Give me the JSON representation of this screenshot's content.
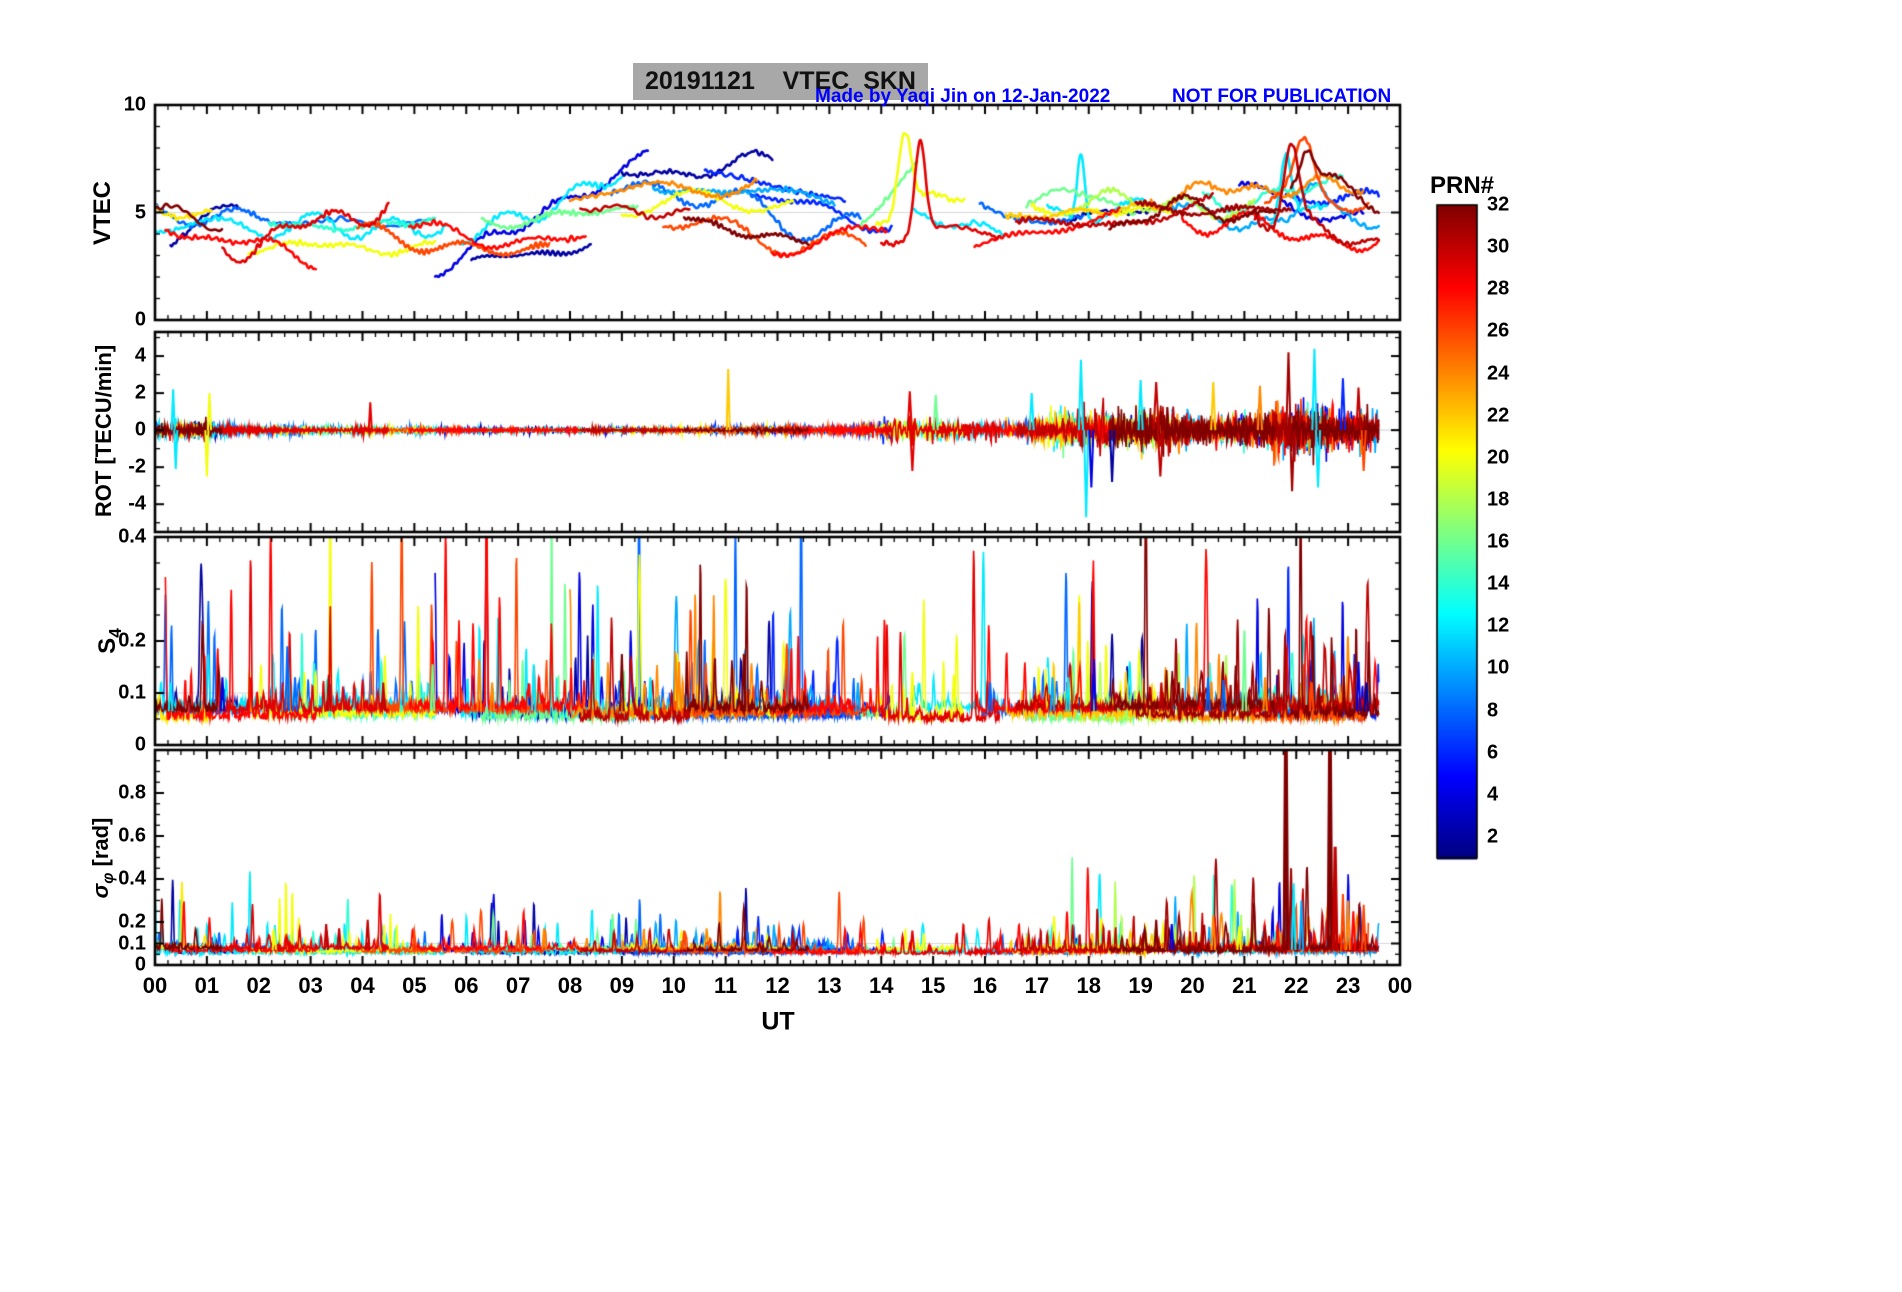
{
  "header": {
    "title": "20191121    VTEC  SKN",
    "credit": "Made by Yaqi Jin on 12-Jan-2022",
    "warning": "NOT FOR PUBLICATION",
    "title_bg": "#a8a8a8",
    "annotation_color": "#0000ff"
  },
  "colorbar": {
    "title": "PRN#",
    "tick_values": [
      2,
      4,
      6,
      8,
      10,
      12,
      14,
      16,
      18,
      20,
      22,
      24,
      26,
      28,
      30,
      32
    ],
    "range": [
      1,
      32
    ],
    "colormap": "jet"
  },
  "chart_data": {
    "type": "line",
    "xlabel": "UT",
    "x_tick_labels": [
      "00",
      "01",
      "02",
      "03",
      "04",
      "05",
      "06",
      "07",
      "08",
      "09",
      "10",
      "11",
      "12",
      "13",
      "14",
      "15",
      "16",
      "17",
      "18",
      "19",
      "20",
      "21",
      "22",
      "23",
      "00"
    ],
    "x_range_hours": [
      0,
      24
    ],
    "panels": [
      {
        "name": "VTEC",
        "ylabel": "VTEC",
        "ylim": [
          0,
          10
        ],
        "ytick_vals": [
          0,
          5,
          10
        ],
        "ytick_labels": [
          "0",
          "5",
          "10"
        ],
        "minor_step": 1,
        "grid": [
          5
        ]
      },
      {
        "name": "ROT",
        "ylabel": "ROT [TECU/min]",
        "ylim": [
          -5.5,
          5.3
        ],
        "ytick_vals": [
          -4,
          -2,
          0,
          2,
          4
        ],
        "ytick_labels": [
          "-4",
          "-2",
          "0",
          "2",
          "4"
        ],
        "minor_step": 1,
        "grid": [
          0
        ],
        "noise_scale": 0.33,
        "envelope": [
          [
            0,
            1.1
          ],
          [
            0.8,
            0.9
          ],
          [
            2,
            0.45
          ],
          [
            5,
            0.4
          ],
          [
            8,
            0.3
          ],
          [
            10,
            0.35
          ],
          [
            13,
            0.45
          ],
          [
            13.8,
            0.8
          ],
          [
            14.3,
            1.7
          ],
          [
            15.2,
            1.5
          ],
          [
            16,
            0.9
          ],
          [
            16.8,
            1.2
          ],
          [
            17.5,
            2.1
          ],
          [
            18.2,
            2.5
          ],
          [
            19,
            2.1
          ],
          [
            19.5,
            2.5
          ],
          [
            20.2,
            1.7
          ],
          [
            21,
            2.1
          ],
          [
            21.8,
            2.9
          ],
          [
            22.4,
            3.1
          ],
          [
            23,
            2.5
          ],
          [
            23.6,
            2.1
          ]
        ],
        "spikes": [
          [
            0.35,
            12,
            2.2,
            0.03
          ],
          [
            0.4,
            12,
            -2.1,
            0.03
          ],
          [
            1.0,
            20,
            -2.5,
            0.03
          ],
          [
            1.05,
            20,
            2.0,
            0.03
          ],
          [
            4.15,
            29,
            1.5,
            0.03
          ],
          [
            11.05,
            22,
            3.3,
            0.03
          ],
          [
            14.55,
            29,
            2.1,
            0.04
          ],
          [
            14.6,
            29,
            -2.2,
            0.04
          ],
          [
            15.05,
            16,
            1.9,
            0.04
          ],
          [
            16.9,
            12,
            2.0,
            0.04
          ],
          [
            17.85,
            12,
            3.8,
            0.04
          ],
          [
            17.95,
            12,
            -4.7,
            0.04
          ],
          [
            18.05,
            4,
            -3.1,
            0.04
          ],
          [
            18.45,
            2,
            -2.8,
            0.04
          ],
          [
            19.0,
            12,
            2.7,
            0.04
          ],
          [
            19.3,
            30,
            2.6,
            0.05
          ],
          [
            19.38,
            30,
            -2.5,
            0.05
          ],
          [
            20.4,
            22,
            2.6,
            0.04
          ],
          [
            21.3,
            24,
            2.4,
            0.04
          ],
          [
            21.85,
            31,
            4.2,
            0.04
          ],
          [
            21.92,
            31,
            -3.3,
            0.04
          ],
          [
            22.35,
            12,
            4.4,
            0.04
          ],
          [
            22.42,
            12,
            -3.1,
            0.04
          ],
          [
            22.9,
            6,
            2.8,
            0.04
          ],
          [
            23.2,
            30,
            2.3,
            0.04
          ],
          [
            23.3,
            26,
            -2.2,
            0.04
          ]
        ]
      },
      {
        "name": "S4",
        "ylabel_main": "S",
        "ylabel_sub": "4",
        "ylim": [
          0,
          0.4
        ],
        "ytick_vals": [
          0,
          0.1,
          0.2,
          0.4
        ],
        "ytick_labels": [
          "0",
          "0.1",
          "0.2",
          "0.4"
        ],
        "minor_step": 0.05,
        "grid": [
          0.1
        ],
        "abs_scale": 0.013,
        "spike_scale": 0.05,
        "baseline": 0.045,
        "envelope": [
          [
            0,
            1
          ],
          [
            6,
            1
          ],
          [
            9,
            1.1
          ],
          [
            13,
            1
          ],
          [
            16,
            0.9
          ],
          [
            20,
            0.9
          ],
          [
            22,
            1.1
          ],
          [
            23.6,
            1
          ]
        ],
        "spikes": [
          [
            0.3,
            12,
            0.12
          ],
          [
            1.3,
            4,
            0.13
          ],
          [
            2.55,
            8,
            0.19
          ],
          [
            2.7,
            8,
            0.13
          ],
          [
            3.35,
            30,
            0.135
          ],
          [
            4.4,
            30,
            0.12
          ],
          [
            5.35,
            16,
            0.155
          ],
          [
            6.25,
            24,
            0.165
          ],
          [
            6.5,
            24,
            0.12
          ],
          [
            7.3,
            12,
            0.155
          ],
          [
            9.0,
            32,
            0.175
          ],
          [
            9.55,
            12,
            0.13
          ],
          [
            10.1,
            24,
            0.16
          ],
          [
            11.35,
            32,
            0.175
          ],
          [
            13.55,
            10,
            0.12
          ],
          [
            14.6,
            20,
            0.14
          ],
          [
            15.4,
            20,
            0.135
          ],
          [
            16.1,
            8,
            0.12
          ],
          [
            17.3,
            10,
            0.13
          ],
          [
            17.6,
            12,
            0.13
          ],
          [
            18.1,
            4,
            0.165
          ],
          [
            19.4,
            30,
            0.12
          ],
          [
            20.3,
            8,
            0.13
          ],
          [
            20.6,
            8,
            0.125
          ],
          [
            21.0,
            16,
            0.22
          ],
          [
            21.4,
            24,
            0.13
          ],
          [
            22.3,
            26,
            0.12
          ],
          [
            23.2,
            4,
            0.16
          ],
          [
            23.35,
            2,
            0.12
          ]
        ]
      },
      {
        "name": "sigma_phi",
        "ylabel_sym": "σ",
        "ylabel_sub": "φ",
        "ylabel_unit": " [rad]",
        "ylim": [
          0,
          1.0
        ],
        "ytick_vals": [
          0,
          0.1,
          0.2,
          0.4,
          0.6,
          0.8
        ],
        "ytick_labels": [
          "0",
          "0.1",
          "0.2",
          "0.4",
          "0.6",
          "0.8"
        ],
        "minor_step": 0.05,
        "grid": [
          0.1
        ],
        "abs_scale": 0.012,
        "spike_scale": 0.04,
        "baseline": 0.05,
        "envelope": [
          [
            0,
            1
          ],
          [
            13,
            0.9
          ],
          [
            17,
            1
          ],
          [
            20,
            1.1
          ],
          [
            21.5,
            1.4
          ],
          [
            23.6,
            1.3
          ]
        ],
        "spikes": [
          [
            2.3,
            20,
            0.14
          ],
          [
            3.3,
            30,
            0.19
          ],
          [
            3.55,
            30,
            0.17
          ],
          [
            4.1,
            30,
            0.21
          ],
          [
            5.0,
            26,
            0.15
          ],
          [
            7.0,
            26,
            0.15
          ],
          [
            7.5,
            24,
            0.17
          ],
          [
            10.2,
            26,
            0.16
          ],
          [
            12.3,
            30,
            0.14
          ],
          [
            14.6,
            29,
            0.16
          ],
          [
            16.3,
            28,
            0.14
          ],
          [
            19.3,
            32,
            0.21
          ],
          [
            19.6,
            4,
            0.19
          ],
          [
            20.4,
            24,
            0.23
          ],
          [
            20.9,
            20,
            0.18
          ],
          [
            21.8,
            32,
            1.3
          ],
          [
            21.9,
            31,
            0.45
          ],
          [
            21.95,
            12,
            0.38
          ],
          [
            22.1,
            10,
            0.3
          ],
          [
            22.65,
            32,
            1.3
          ],
          [
            22.75,
            30,
            0.55
          ],
          [
            22.9,
            26,
            0.33
          ],
          [
            23.0,
            24,
            0.3
          ],
          [
            23.1,
            28,
            0.25
          ],
          [
            23.3,
            26,
            0.28
          ]
        ]
      }
    ],
    "arcs": [
      {
        "p": 2,
        "a": 0.3,
        "b": 1.6,
        "y0": 3.3,
        "y1": 5.5,
        "amp": 0.4
      },
      {
        "p": 2,
        "a": 6.1,
        "b": 8.4,
        "y0": 2.5,
        "y1": 3.5,
        "amp": 0.3
      },
      {
        "p": 2,
        "a": 9.0,
        "b": 11.9,
        "y0": 6.7,
        "y1": 7.3,
        "amp": 0.35
      },
      {
        "p": 2,
        "a": 17.6,
        "b": 19.2,
        "y0": 4.6,
        "y1": 5.0,
        "amp": 0.3
      },
      {
        "p": 4,
        "a": 5.4,
        "b": 9.5,
        "y0": 2.3,
        "y1": 7.6,
        "amp": 0.4
      },
      {
        "p": 4,
        "a": 20.9,
        "b": 23.3,
        "y0": 6.2,
        "y1": 4.9,
        "amp": 0.5
      },
      {
        "p": 6,
        "a": 10.6,
        "b": 13.3,
        "y0": 6.9,
        "y1": 5.6,
        "amp": 0.4
      },
      {
        "p": 6,
        "a": 11.5,
        "b": 14.2,
        "y0": 5.6,
        "y1": 4.4,
        "amp": 0.4
      },
      {
        "p": 6,
        "a": 21.8,
        "b": 23.6,
        "y0": 5.8,
        "y1": 5.2,
        "amp": 0.5
      },
      {
        "p": 8,
        "a": 0.0,
        "b": 2.6,
        "y0": 5.0,
        "y1": 4.6,
        "amp": 0.35
      },
      {
        "p": 8,
        "a": 2.4,
        "b": 5.3,
        "y0": 4.6,
        "y1": 4.4,
        "amp": 0.3
      },
      {
        "p": 8,
        "a": 8.8,
        "b": 13.6,
        "y0": 6.2,
        "y1": 4.3,
        "amp": 0.55
      },
      {
        "p": 8,
        "a": 15.9,
        "b": 17.9,
        "y0": 5.0,
        "y1": 4.6,
        "amp": 0.35
      },
      {
        "p": 10,
        "a": 9.6,
        "b": 13.1,
        "y0": 6.3,
        "y1": 5.6,
        "amp": 0.45
      },
      {
        "p": 10,
        "a": 19.6,
        "b": 23.6,
        "y0": 5.2,
        "y1": 4.4,
        "amp": 0.55,
        "s": [
          [
            22.3,
            1.6,
            0.3
          ]
        ]
      },
      {
        "p": 12,
        "a": 0.0,
        "b": 5.6,
        "y0": 4.4,
        "y1": 4.3,
        "amp": 0.45
      },
      {
        "p": 12,
        "a": 5.9,
        "b": 9.0,
        "y0": 3.9,
        "y1": 6.6,
        "amp": 0.45
      },
      {
        "p": 12,
        "a": 14.6,
        "b": 16.4,
        "y0": 5.0,
        "y1": 4.0,
        "amp": 0.4
      },
      {
        "p": 12,
        "a": 17.2,
        "b": 19.1,
        "y0": 4.8,
        "y1": 5.1,
        "amp": 0.45,
        "s": [
          [
            17.85,
            3.2,
            0.1
          ]
        ]
      },
      {
        "p": 12,
        "a": 21.5,
        "b": 22.6,
        "y0": 5.0,
        "y1": 5.4,
        "amp": 0.5,
        "s": [
          [
            21.8,
            3.1,
            0.15
          ]
        ]
      },
      {
        "p": 14,
        "a": 2.2,
        "b": 5.4,
        "y0": 4.4,
        "y1": 4.5,
        "amp": 0.3
      },
      {
        "p": 14,
        "a": 20.2,
        "b": 22.9,
        "y0": 5.6,
        "y1": 6.4,
        "amp": 0.45
      },
      {
        "p": 16,
        "a": 6.3,
        "b": 9.3,
        "y0": 4.6,
        "y1": 5.0,
        "amp": 0.3
      },
      {
        "p": 16,
        "a": 13.6,
        "b": 14.7,
        "y0": 4.6,
        "y1": 7.0,
        "amp": 0.3
      },
      {
        "p": 16,
        "a": 16.8,
        "b": 18.9,
        "y0": 5.8,
        "y1": 5.4,
        "amp": 0.4
      },
      {
        "p": 18,
        "a": 17.8,
        "b": 21.2,
        "y0": 5.2,
        "y1": 5.6,
        "amp": 0.45
      },
      {
        "p": 20,
        "a": 1.8,
        "b": 5.4,
        "y0": 3.5,
        "y1": 3.3,
        "amp": 0.3
      },
      {
        "p": 20,
        "a": 9.0,
        "b": 12.3,
        "y0": 5.3,
        "y1": 5.5,
        "amp": 0.4
      },
      {
        "p": 20,
        "a": 13.9,
        "b": 15.6,
        "y0": 4.6,
        "y1": 6.0,
        "amp": 0.4,
        "s": [
          [
            14.45,
            3.7,
            0.18
          ]
        ]
      },
      {
        "p": 20,
        "a": 16.9,
        "b": 19.6,
        "y0": 5.2,
        "y1": 5.0,
        "amp": 0.4
      },
      {
        "p": 21,
        "a": 0.0,
        "b": 1.1,
        "y0": 5.2,
        "y1": 4.9,
        "amp": 0.25
      },
      {
        "p": 22,
        "a": 16.4,
        "b": 19.3,
        "y0": 4.8,
        "y1": 5.2,
        "amp": 0.45
      },
      {
        "p": 24,
        "a": 8.0,
        "b": 11.6,
        "y0": 5.4,
        "y1": 6.6,
        "amp": 0.45
      },
      {
        "p": 24,
        "a": 19.2,
        "b": 23.3,
        "y0": 5.9,
        "y1": 6.3,
        "amp": 0.5
      },
      {
        "p": 26,
        "a": 3.9,
        "b": 7.6,
        "y0": 3.8,
        "y1": 3.3,
        "amp": 0.4
      },
      {
        "p": 26,
        "a": 9.8,
        "b": 13.7,
        "y0": 4.6,
        "y1": 3.2,
        "amp": 0.4
      },
      {
        "p": 26,
        "a": 21.4,
        "b": 23.4,
        "y0": 5.4,
        "y1": 6.0,
        "amp": 0.55,
        "s": [
          [
            22.15,
            2.3,
            0.25
          ]
        ]
      },
      {
        "p": 28,
        "a": 0.2,
        "b": 3.1,
        "y0": 4.3,
        "y1": 2.9,
        "amp": 0.45
      },
      {
        "p": 28,
        "a": 4.9,
        "b": 8.3,
        "y0": 4.3,
        "y1": 3.6,
        "amp": 0.5
      },
      {
        "p": 28,
        "a": 11.9,
        "b": 14.1,
        "y0": 3.4,
        "y1": 4.2,
        "amp": 0.4
      },
      {
        "p": 28,
        "a": 15.8,
        "b": 18.6,
        "y0": 3.6,
        "y1": 5.0,
        "amp": 0.5
      },
      {
        "p": 28,
        "a": 19.8,
        "b": 23.6,
        "y0": 4.6,
        "y1": 3.7,
        "amp": 0.5
      },
      {
        "p": 29,
        "a": 1.3,
        "b": 4.5,
        "y0": 3.3,
        "y1": 5.4,
        "amp": 0.55
      },
      {
        "p": 29,
        "a": 14.0,
        "b": 16.3,
        "y0": 4.0,
        "y1": 3.9,
        "amp": 0.5,
        "s": [
          [
            14.75,
            4.3,
            0.15
          ]
        ]
      },
      {
        "p": 30,
        "a": 8.2,
        "b": 10.3,
        "y0": 5.6,
        "y1": 4.8,
        "amp": 0.45
      },
      {
        "p": 30,
        "a": 16.6,
        "b": 20.4,
        "y0": 4.4,
        "y1": 5.0,
        "amp": 0.5
      },
      {
        "p": 30,
        "a": 21.2,
        "b": 23.6,
        "y0": 5.0,
        "y1": 3.8,
        "amp": 0.55,
        "s": [
          [
            21.9,
            3.6,
            0.2
          ]
        ]
      },
      {
        "p": 31,
        "a": 18.9,
        "b": 21.9,
        "y0": 4.9,
        "y1": 5.3,
        "amp": 0.5
      },
      {
        "p": 32,
        "a": 0.0,
        "b": 1.3,
        "y0": 5.3,
        "y1": 4.4,
        "amp": 0.3
      },
      {
        "p": 32,
        "a": 10.2,
        "b": 12.6,
        "y0": 4.7,
        "y1": 3.7,
        "amp": 0.3
      },
      {
        "p": 32,
        "a": 18.4,
        "b": 21.6,
        "y0": 4.4,
        "y1": 5.3,
        "amp": 0.55
      },
      {
        "p": 32,
        "a": 21.9,
        "b": 23.6,
        "y0": 6.5,
        "y1": 5.2,
        "amp": 0.6,
        "s": [
          [
            22.2,
            1.8,
            0.2
          ]
        ]
      }
    ]
  }
}
